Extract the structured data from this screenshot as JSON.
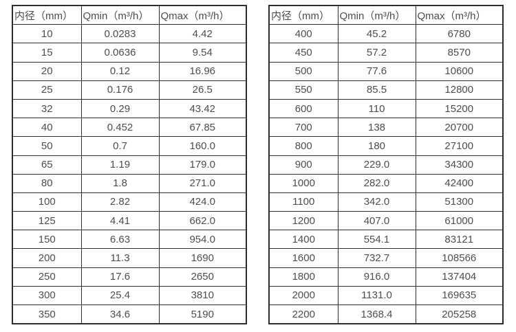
{
  "colors": {
    "border": "#2b2b2b",
    "text": "#4d4d4d",
    "background": "#ffffff"
  },
  "tables": [
    {
      "name": "pipe-diameter-flow-table-small",
      "headers": [
        "内径（mm）",
        "Qmin（m³/h）",
        "Qmax（m³/h）"
      ],
      "rows": [
        [
          "10",
          "0.0283",
          "4.42"
        ],
        [
          "15",
          "0.0636",
          "9.54"
        ],
        [
          "20",
          "0.12",
          "16.96"
        ],
        [
          "25",
          "0.176",
          "26.5"
        ],
        [
          "32",
          "0.29",
          "43.42"
        ],
        [
          "40",
          "0.452",
          "67.85"
        ],
        [
          "50",
          "0.7",
          "160.0"
        ],
        [
          "65",
          "1.19",
          "179.0"
        ],
        [
          "80",
          "1.8",
          "271.0"
        ],
        [
          "100",
          "2.82",
          "424.0"
        ],
        [
          "125",
          "4.41",
          "662.0"
        ],
        [
          "150",
          "6.63",
          "954.0"
        ],
        [
          "200",
          "11.3",
          "1690"
        ],
        [
          "250",
          "17.6",
          "2650"
        ],
        [
          "300",
          "25.4",
          "3810"
        ],
        [
          "350",
          "34.6",
          "5190"
        ]
      ]
    },
    {
      "name": "pipe-diameter-flow-table-large",
      "headers": [
        "内径（mm）",
        "Qmin（m³/h）",
        "Qmax（m³/h）"
      ],
      "rows": [
        [
          "400",
          "45.2",
          "6780"
        ],
        [
          "450",
          "57.2",
          "8570"
        ],
        [
          "500",
          "77.6",
          "10600"
        ],
        [
          "550",
          "85.5",
          "12800"
        ],
        [
          "600",
          "110",
          "15200"
        ],
        [
          "700",
          "138",
          "20700"
        ],
        [
          "800",
          "180",
          "27100"
        ],
        [
          "900",
          "229.0",
          "34300"
        ],
        [
          "1000",
          "282.0",
          "42400"
        ],
        [
          "1100",
          "342.0",
          "51300"
        ],
        [
          "1200",
          "407.0",
          "61000"
        ],
        [
          "1400",
          "554.1",
          "83121"
        ],
        [
          "1600",
          "732.7",
          "108566"
        ],
        [
          "1800",
          "916.0",
          "137404"
        ],
        [
          "2000",
          "1131.0",
          "169635"
        ],
        [
          "2200",
          "1368.4",
          "205258"
        ]
      ]
    }
  ]
}
